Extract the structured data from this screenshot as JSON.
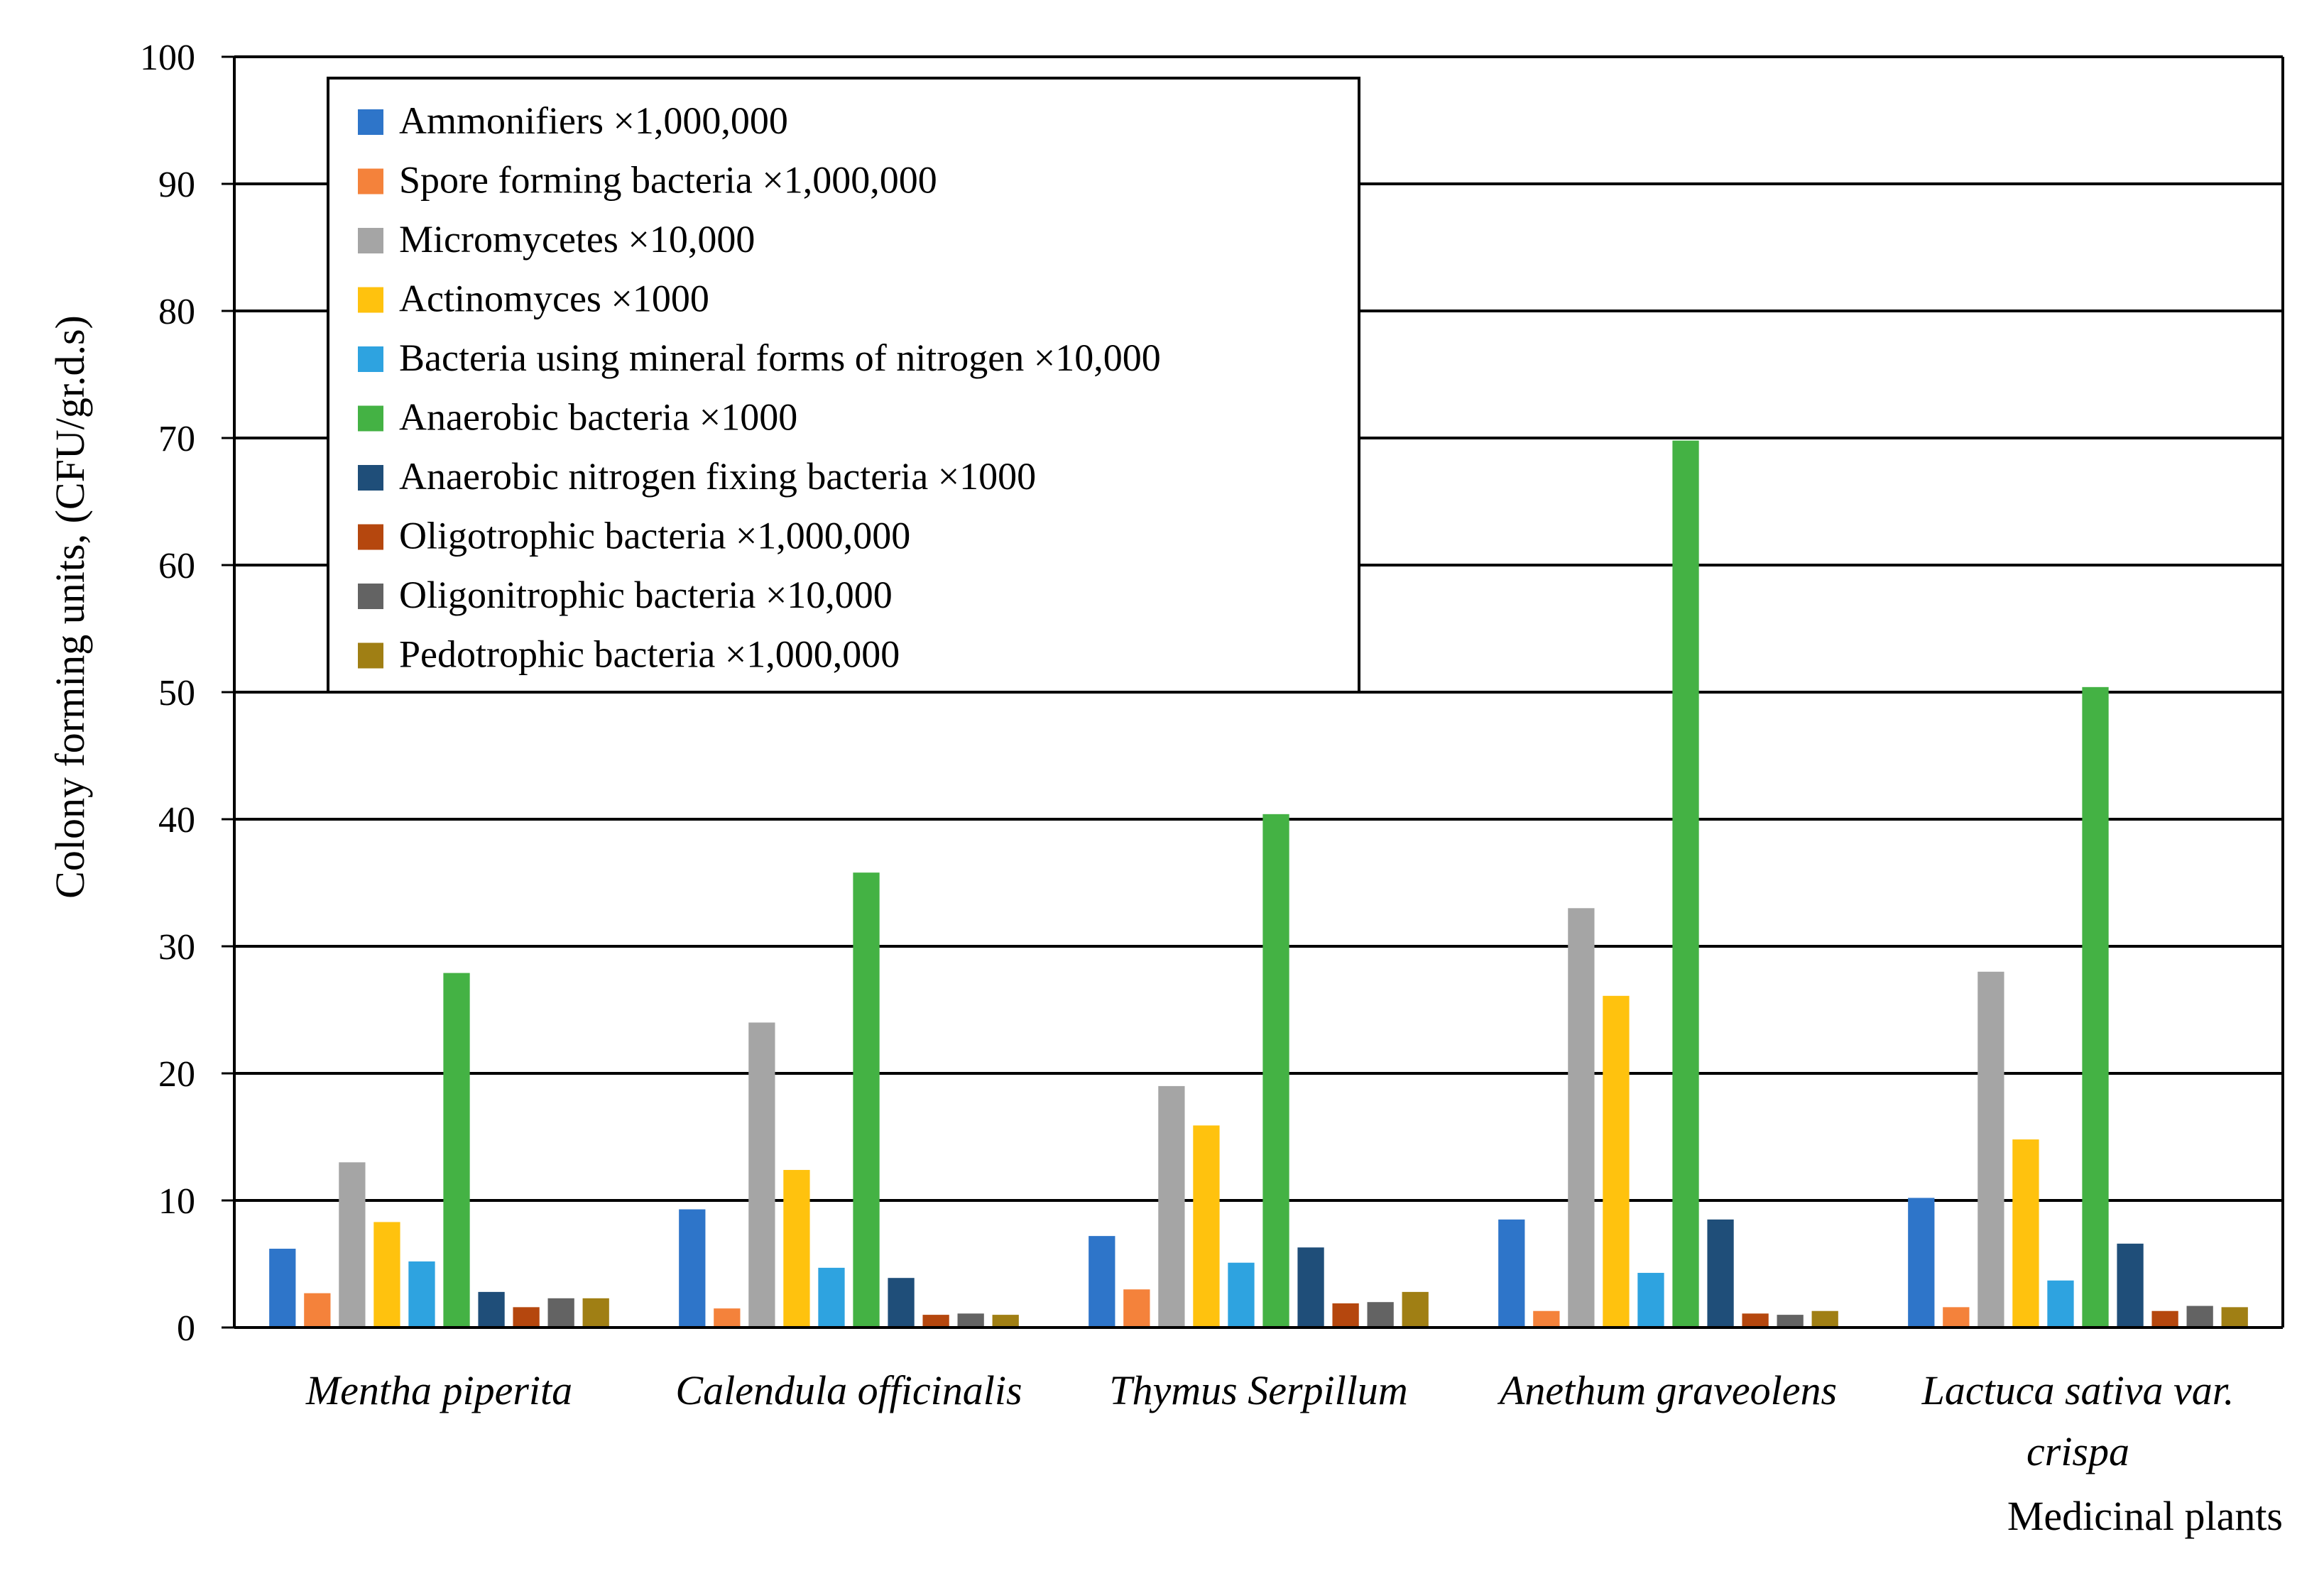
{
  "chart_data": {
    "type": "bar",
    "title": "",
    "xlabel": "Medicinal plants",
    "ylabel": "Colony forming units, (CFU/gr.d.s)",
    "ylim": [
      0,
      100
    ],
    "yticks": [
      "0",
      "10",
      "20",
      "30",
      "40",
      "50",
      "60",
      "70",
      "80",
      "90",
      "100"
    ],
    "grid": true,
    "legend_position": "top-left",
    "categories": [
      [
        "Mentha piperita"
      ],
      [
        "Calendula officinalis"
      ],
      [
        "Thymus Serpillum"
      ],
      [
        "Anethum graveolens"
      ],
      [
        "Lactuca sativa var.",
        "crispa"
      ]
    ],
    "series": [
      {
        "name": "Ammonifiers ×1,000,000",
        "color": "#2e75c9",
        "values": [
          6.2,
          9.3,
          7.2,
          8.5,
          10.2
        ]
      },
      {
        "name": "Spore forming bacteria ×1,000,000",
        "color": "#f4823b",
        "values": [
          2.7,
          1.5,
          3.0,
          1.3,
          1.6
        ]
      },
      {
        "name": "Micromycetes ×10,000",
        "color": "#a5a5a5",
        "values": [
          13,
          24,
          19,
          33,
          28
        ]
      },
      {
        "name": "Actinomyces ×1000",
        "color": "#ffc20e",
        "values": [
          8.3,
          12.4,
          15.9,
          26.1,
          14.8
        ]
      },
      {
        "name": "Bacteria using mineral forms of nitrogen ×10,000",
        "color": "#2ea3e0",
        "values": [
          5.2,
          4.7,
          5.1,
          4.3,
          3.7
        ]
      },
      {
        "name": "Anaerobic bacteria ×1000",
        "color": "#44b244",
        "values": [
          27.9,
          35.8,
          40.4,
          69.8,
          50.4
        ]
      },
      {
        "name": "Anaerobic nitrogen fixing bacteria ×1000",
        "color": "#1f4e79",
        "values": [
          2.8,
          3.9,
          6.3,
          8.5,
          6.6
        ]
      },
      {
        "name": "Oligotrophic bacteria ×1,000,000",
        "color": "#b5470e",
        "values": [
          1.6,
          1.0,
          1.9,
          1.1,
          1.3
        ]
      },
      {
        "name": "Oligonitrophic bacteria ×10,000",
        "color": "#636363",
        "values": [
          2.3,
          1.1,
          2.0,
          1.0,
          1.7
        ]
      },
      {
        "name": "Pedotrophic bacteria ×1,000,000",
        "color": "#a07f14",
        "values": [
          2.3,
          1.0,
          2.8,
          1.3,
          1.6
        ]
      }
    ]
  }
}
